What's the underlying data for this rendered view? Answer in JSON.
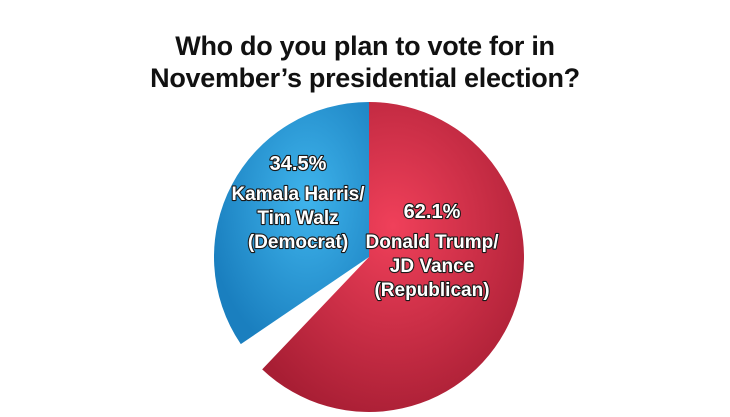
{
  "title": {
    "line1": "Who do you plan to vote for in",
    "line2": "November’s presidential election?"
  },
  "chart_data": {
    "type": "pie",
    "title": "Who do you plan to vote for in November’s presidential election?",
    "slices": [
      {
        "name": "Donald Trump/ JD Vance (Republican)",
        "value": 62.1,
        "value_label": "62.1%",
        "label_lines": [
          "Donald Trump/",
          "JD Vance",
          "(Republican)"
        ],
        "color": "#cf2a44"
      },
      {
        "name": "Kamala Harris/ Tim Walz (Democrat)",
        "value": 34.5,
        "value_label": "34.5%",
        "label_lines": [
          "Kamala Harris/",
          "Tim Walz",
          "(Democrat)"
        ],
        "color": "#2b9ed9"
      }
    ]
  }
}
